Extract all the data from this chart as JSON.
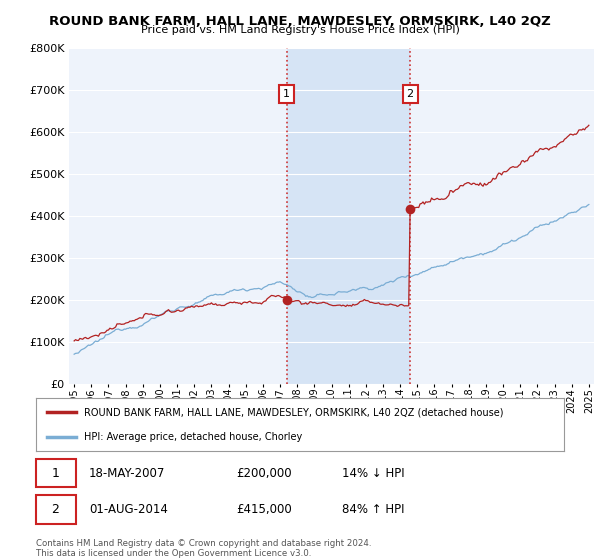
{
  "title": "ROUND BANK FARM, HALL LANE, MAWDESLEY, ORMSKIRK, L40 2QZ",
  "subtitle": "Price paid vs. HM Land Registry's House Price Index (HPI)",
  "ylim": [
    0,
    800000
  ],
  "yticks": [
    0,
    100000,
    200000,
    300000,
    400000,
    500000,
    600000,
    700000,
    800000
  ],
  "ytick_labels": [
    "£0",
    "£100K",
    "£200K",
    "£300K",
    "£400K",
    "£500K",
    "£600K",
    "£700K",
    "£800K"
  ],
  "hpi_color": "#7aadd4",
  "price_color": "#b22222",
  "sale1_date": 2007.38,
  "sale1_price": 200000,
  "sale2_date": 2014.58,
  "sale2_price": 415000,
  "vline_color": "#cc3333",
  "annotation_box_color": "#cc2222",
  "legend_red_label": "ROUND BANK FARM, HALL LANE, MAWDESLEY, ORMSKIRK, L40 2QZ (detached house)",
  "legend_blue_label": "HPI: Average price, detached house, Chorley",
  "table_row1": [
    "1",
    "18-MAY-2007",
    "£200,000",
    "14% ↓ HPI"
  ],
  "table_row2": [
    "2",
    "01-AUG-2014",
    "£415,000",
    "84% ↑ HPI"
  ],
  "footer_text": "Contains HM Land Registry data © Crown copyright and database right 2024.\nThis data is licensed under the Open Government Licence v3.0.",
  "plot_bg_color": "#eef3fb",
  "shade_color": "#d6e4f5",
  "grid_color": "#ffffff"
}
